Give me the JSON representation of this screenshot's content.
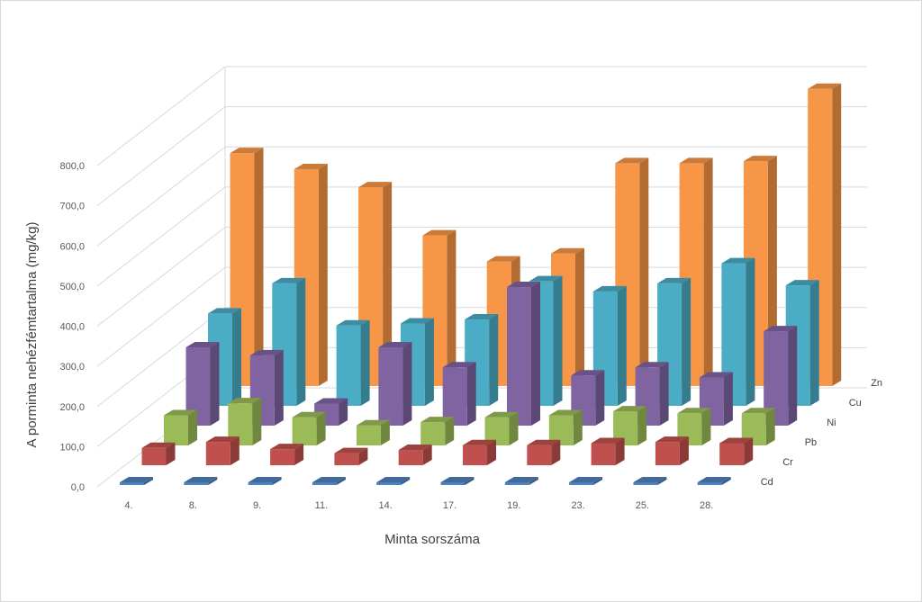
{
  "chart_data": {
    "type": "bar",
    "subtype": "3d-column",
    "title": "",
    "xlabel": "Minta sorszáma",
    "ylabel": "A porminta nehézfémtartalma  (mg/kg)",
    "categories": [
      "4.",
      "8.",
      "9.",
      "11.",
      "14.",
      "17.",
      "19.",
      "23.",
      "25.",
      "28."
    ],
    "ylim": [
      0,
      800
    ],
    "yticks": [
      "0,0",
      "100,0",
      "200,0",
      "300,0",
      "400,0",
      "500,0",
      "600,0",
      "700,0",
      "800,0"
    ],
    "grid": true,
    "series": [
      {
        "name": "Cd",
        "color": "#4f81bd",
        "values": [
          2,
          2,
          2,
          2,
          2,
          2,
          2,
          2,
          2,
          3
        ]
      },
      {
        "name": "Cr",
        "color": "#c0504d",
        "values": [
          43,
          58,
          40,
          30,
          38,
          50,
          50,
          55,
          58,
          55
        ]
      },
      {
        "name": "Pb",
        "color": "#9bbb59",
        "values": [
          75,
          105,
          70,
          50,
          58,
          70,
          75,
          85,
          80,
          80
        ]
      },
      {
        "name": "Ni",
        "color": "#8064a2",
        "values": [
          195,
          175,
          55,
          195,
          145,
          345,
          125,
          145,
          120,
          235
        ]
      },
      {
        "name": "Cu",
        "color": "#4bacc6",
        "values": [
          230,
          305,
          200,
          205,
          215,
          310,
          285,
          305,
          355,
          300
        ]
      },
      {
        "name": "Zn",
        "color": "#f79646",
        "values": [
          580,
          540,
          495,
          375,
          310,
          330,
          555,
          555,
          560,
          740
        ]
      }
    ]
  }
}
